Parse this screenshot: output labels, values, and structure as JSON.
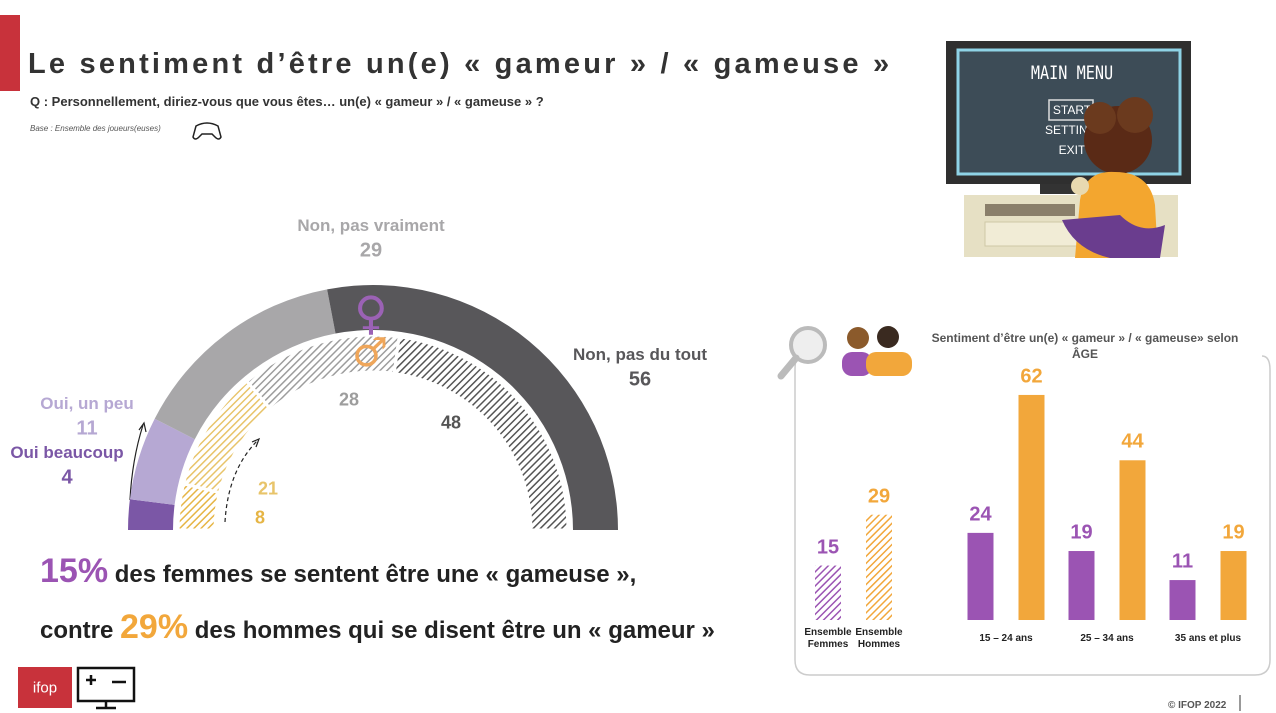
{
  "header": {
    "title": "Le sentiment d’être un(e) « gameur » / « gameuse »",
    "question": "Q : Personnellement, diriez-vous que vous êtes… un(e) « gameur » / « gameuse » ?",
    "base": "Base : Ensemble des joueurs(euses)"
  },
  "tv_screen": {
    "heading": "MAIN MENU",
    "items": [
      "START",
      "SETTINGS",
      "EXIT"
    ]
  },
  "headline": {
    "line1": [
      "15%",
      " des femmes se sentent être une « gameuse »,"
    ],
    "line2": [
      "contre ",
      "29%",
      " des hommes qui se disent être un « gameur »"
    ]
  },
  "chart_data": [
    {
      "type": "semi-donut",
      "categories": [
        "Oui beaucoup",
        "Oui, un peu",
        "Non, pas vraiment",
        "Non, pas du tout"
      ],
      "series": [
        {
          "name": "♀",
          "color": "#9b62b5",
          "colors": [
            "#7b57a6",
            "#b6a8d3",
            "#a8a7a9",
            "#58575a"
          ],
          "values": [
            4,
            11,
            29,
            56
          ]
        },
        {
          "name": "♂",
          "color": "#efa65a",
          "colors": [
            "#e6b545",
            "#e8c46a",
            "#9d9d9d",
            "#555555"
          ],
          "values": [
            8,
            21,
            28,
            48
          ]
        }
      ]
    },
    {
      "type": "bar",
      "title": "Sentiment d’être un(e) « gameur » / « gameuse» selon ÂGE",
      "categories": [
        "Ensemble Femmes",
        "Ensemble Hommes",
        "15 – 24 ans",
        "25 – 34 ans",
        "35 ans et plus"
      ],
      "series": [
        {
          "color": "#9b54b3",
          "values": [
            15,
            null,
            24,
            19,
            11
          ]
        },
        {
          "color": "#f2a73b",
          "values": [
            null,
            29,
            62,
            44,
            19
          ]
        }
      ]
    }
  ],
  "footer": {
    "logo": "ifop",
    "copyright": "© IFOP 2022"
  }
}
